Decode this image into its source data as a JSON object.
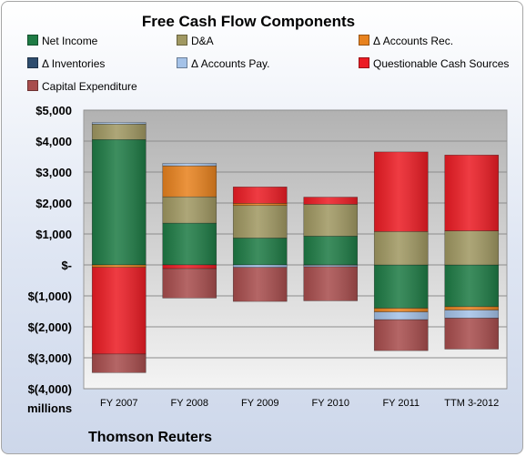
{
  "chart_data": {
    "type": "bar",
    "stacked": true,
    "title": "Free Cash Flow Components",
    "units_label": "millions",
    "source_label": "Thomson Reuters",
    "categories": [
      "FY 2007",
      "FY 2008",
      "FY 2009",
      "FY 2010",
      "FY 2011",
      "TTM 3-2012"
    ],
    "ylim": [
      -4000,
      5000
    ],
    "yticks": [
      {
        "value": 5000,
        "label": "$5,000"
      },
      {
        "value": 4000,
        "label": "$4,000"
      },
      {
        "value": 3000,
        "label": "$3,000"
      },
      {
        "value": 2000,
        "label": "$2,000"
      },
      {
        "value": 1000,
        "label": "$1,000"
      },
      {
        "value": 0,
        "label": "$-"
      },
      {
        "value": -1000,
        "label": "$(1,000)"
      },
      {
        "value": -2000,
        "label": "$(2,000)"
      },
      {
        "value": -3000,
        "label": "$(3,000)"
      },
      {
        "value": -4000,
        "label": "$(4,000)"
      }
    ],
    "grid": true,
    "legend_position": "top",
    "series": [
      {
        "name": "Net Income",
        "color": "#1e7b45",
        "values": [
          4050,
          1350,
          870,
          930,
          -1400,
          -1350
        ]
      },
      {
        "name": "D&A",
        "color": "#a09862",
        "values": [
          500,
          850,
          1050,
          1030,
          1080,
          1100
        ]
      },
      {
        "name": "Δ Accounts Rec.",
        "color": "#e8821e",
        "values": [
          -80,
          1000,
          70,
          -10,
          -120,
          -110
        ]
      },
      {
        "name": "Δ Inventories",
        "color": "#2e4d6e",
        "values": [
          0,
          0,
          0,
          0,
          0,
          0
        ]
      },
      {
        "name": "Δ Accounts Pay.",
        "color": "#a4c2e8",
        "values": [
          50,
          80,
          -80,
          -50,
          -250,
          -260
        ]
      },
      {
        "name": "Questionable Cash Sources",
        "color": "#ec1c24",
        "values": [
          -2800,
          -120,
          530,
          230,
          2570,
          2450
        ]
      },
      {
        "name": "Capital Expenditure",
        "color": "#a84d4d",
        "values": [
          -600,
          -950,
          -1100,
          -1100,
          -1000,
          -1000
        ]
      }
    ]
  }
}
